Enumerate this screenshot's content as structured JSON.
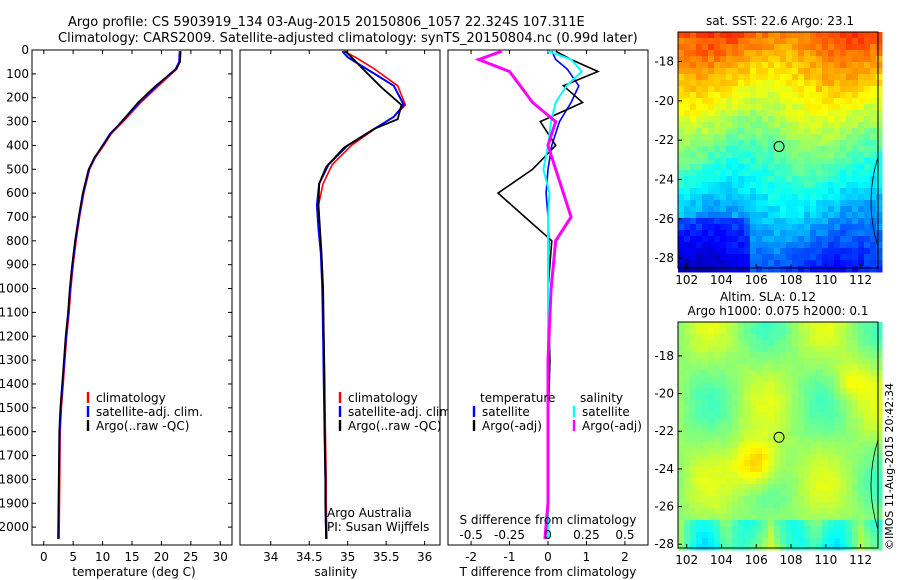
{
  "header": {
    "line1": "Argo profile: CS 5903919_134 03-Aug-2015 20150806_1057 22.324S 107.311E",
    "line2": "Climatology: CARS2009. Satellite-adjusted climatology: synTS_20150804.nc (0.99d later)"
  },
  "side_label": "©IMOS 11-Aug-2015 20:42:34",
  "colors": {
    "climatology": "#ff0000",
    "satellite": "#0000ff",
    "argo": "#000000",
    "argo_s": "#ff00ff",
    "satellite_s": "#00ffff"
  },
  "chart_data": [
    {
      "type": "line",
      "id": "temperature",
      "xlabel": "temperature (deg C)",
      "ylabel": "",
      "xlim": [
        -2,
        32
      ],
      "ylim": [
        2075,
        0
      ],
      "xticks": [
        0,
        5,
        10,
        15,
        20,
        25,
        30
      ],
      "yticks": [
        0,
        100,
        200,
        300,
        400,
        500,
        600,
        700,
        800,
        900,
        1000,
        1100,
        1200,
        1300,
        1400,
        1500,
        1600,
        1700,
        1800,
        1900,
        2000
      ],
      "legend": [
        "climatology",
        "satellite-adj. clim.",
        "Argo(..raw -QC)"
      ],
      "series": [
        {
          "name": "climatology",
          "color": "#ff0000",
          "x": [
            23.2,
            23.1,
            22.6,
            19.5,
            16.5,
            13.5,
            11.5,
            10.2,
            8.8,
            7.8,
            6.8,
            6.1,
            5.5,
            5.0,
            4.6,
            4.3,
            3.9,
            3.6,
            3.3,
            3.0,
            2.8,
            2.6
          ],
          "y": [
            5,
            50,
            80,
            150,
            220,
            300,
            350,
            400,
            450,
            500,
            600,
            700,
            800,
            900,
            1000,
            1100,
            1200,
            1300,
            1400,
            1500,
            1600,
            2050
          ]
        },
        {
          "name": "satellite-adj. clim.",
          "color": "#0000ff",
          "x": [
            23.1,
            23.0,
            22.4,
            19.2,
            16.2,
            13.3,
            11.3,
            10.0,
            8.7,
            7.7,
            6.7,
            6.0,
            5.4,
            4.9,
            4.5,
            4.2,
            3.8,
            3.5,
            3.2,
            2.9,
            2.7,
            2.5
          ],
          "y": [
            5,
            50,
            80,
            150,
            220,
            300,
            350,
            400,
            450,
            500,
            600,
            700,
            800,
            900,
            1000,
            1100,
            1200,
            1300,
            1400,
            1500,
            1600,
            2050
          ]
        },
        {
          "name": "Argo(..raw -QC)",
          "color": "#000000",
          "x": [
            23.3,
            23.2,
            22.5,
            19.0,
            16.0,
            13.2,
            11.4,
            10.1,
            8.6,
            7.6,
            6.6,
            5.9,
            5.3,
            4.8,
            4.4,
            4.1,
            3.7,
            3.4,
            3.1,
            2.8,
            2.6,
            2.4
          ],
          "y": [
            5,
            50,
            80,
            150,
            220,
            300,
            350,
            400,
            450,
            500,
            600,
            700,
            800,
            900,
            1000,
            1100,
            1200,
            1300,
            1400,
            1500,
            1600,
            2050
          ]
        }
      ]
    },
    {
      "type": "line",
      "id": "salinity",
      "xlabel": "salinity",
      "ylabel": "",
      "xlim": [
        33.6,
        36.2
      ],
      "ylim": [
        2075,
        0
      ],
      "xticks": [
        34,
        34.5,
        35,
        35.5,
        36
      ],
      "xtick_labels": [
        "34",
        "34.5",
        "35",
        "35.5",
        "36"
      ],
      "legend": [
        "climatology",
        "satellite-adj. clim.",
        "Argo(..raw -QC)"
      ],
      "annotation": [
        "Argo Australia",
        "PI: Susan Wijffels"
      ],
      "series": [
        {
          "name": "climatology",
          "color": "#ff0000",
          "x": [
            34.95,
            35.1,
            35.35,
            35.65,
            35.75,
            35.6,
            35.4,
            35.05,
            34.8,
            34.68,
            34.62,
            34.63,
            34.66,
            34.68,
            34.69,
            34.7,
            34.71,
            34.72,
            34.72,
            34.73
          ],
          "y": [
            5,
            30,
            80,
            150,
            230,
            280,
            320,
            400,
            480,
            560,
            650,
            750,
            850,
            1000,
            1200,
            1400,
            1600,
            1800,
            1900,
            2050
          ]
        },
        {
          "name": "satellite-adj. clim.",
          "color": "#0000ff",
          "x": [
            34.93,
            35.0,
            35.25,
            35.6,
            35.73,
            35.6,
            35.4,
            35.0,
            34.75,
            34.63,
            34.6,
            34.62,
            34.65,
            34.67,
            34.68,
            34.69,
            34.7,
            34.71,
            34.71,
            34.72
          ],
          "y": [
            5,
            30,
            80,
            150,
            230,
            280,
            320,
            400,
            480,
            560,
            650,
            750,
            850,
            1000,
            1200,
            1400,
            1600,
            1800,
            1900,
            2050
          ]
        },
        {
          "name": "Argo(..raw -QC)",
          "color": "#000000",
          "x": [
            34.97,
            35.05,
            35.2,
            35.45,
            35.7,
            35.65,
            35.35,
            34.95,
            34.72,
            34.63,
            34.62,
            34.64,
            34.66,
            34.68,
            34.69,
            34.7,
            34.7,
            34.71,
            34.71,
            34.72
          ],
          "y": [
            5,
            30,
            80,
            160,
            230,
            290,
            330,
            410,
            490,
            560,
            650,
            750,
            850,
            1000,
            1200,
            1400,
            1600,
            1800,
            1900,
            2050
          ]
        }
      ]
    },
    {
      "type": "line",
      "id": "difference",
      "xlabel": "T difference from climatology",
      "xlabel2": "S difference from climatology",
      "xlim": [
        -2.6,
        2.6
      ],
      "ylim": [
        2075,
        0
      ],
      "xticks": [
        -2,
        -1,
        0,
        1,
        2
      ],
      "sticks": [
        -0.5,
        -0.25,
        0,
        0.25,
        0.5
      ],
      "stick_labels": [
        "-0.5",
        "-0.25",
        "0",
        "0.25",
        "0.5"
      ],
      "legend_left_title": "temperature",
      "legend_right_title": "salinity",
      "legend": [
        "satellite",
        "Argo(-adj)",
        "satellite",
        "Argo(-adj)"
      ],
      "series": [
        {
          "name": "T satellite",
          "color": "#0000ff",
          "x": [
            0.1,
            0.2,
            0.5,
            0.8,
            0.6,
            0.3,
            0.1,
            0.0,
            -0.05,
            0.0,
            0.02,
            0.0,
            0.0,
            0.0,
            0.0,
            0.0
          ],
          "y": [
            5,
            40,
            80,
            150,
            220,
            300,
            400,
            500,
            600,
            700,
            800,
            1000,
            1300,
            1600,
            1900,
            2050
          ]
        },
        {
          "name": "T Argo(-adj)",
          "color": "#000000",
          "x": [
            0.2,
            0.6,
            1.3,
            0.4,
            0.9,
            -0.2,
            0.2,
            -0.4,
            -1.3,
            -0.6,
            0.1,
            0.0,
            0.05,
            0.0,
            0.0,
            0.0
          ],
          "y": [
            5,
            40,
            90,
            150,
            220,
            300,
            400,
            500,
            600,
            700,
            800,
            1000,
            1300,
            1600,
            1900,
            2050
          ]
        },
        {
          "name": "S satellite",
          "color": "#00ffff",
          "x": [
            0.0,
            0.15,
            0.22,
            0.12,
            0.05,
            0.02,
            0.0,
            -0.03,
            0.01,
            0.0,
            0.0,
            0.0,
            0.0,
            0.0,
            0.0,
            0.0
          ],
          "y": [
            5,
            40,
            90,
            150,
            220,
            300,
            400,
            500,
            600,
            700,
            800,
            1000,
            1300,
            1600,
            1900,
            2050
          ]
        },
        {
          "name": "S Argo(-adj)",
          "color": "#ff00ff",
          "x": [
            -0.3,
            -0.45,
            -0.25,
            -0.18,
            -0.1,
            0.05,
            0.0,
            0.05,
            0.1,
            0.15,
            0.05,
            0.02,
            0.0,
            0.0,
            0.0,
            -0.02
          ],
          "y": [
            5,
            40,
            90,
            150,
            220,
            300,
            400,
            500,
            600,
            700,
            800,
            1000,
            1300,
            1600,
            1900,
            2050
          ]
        }
      ]
    },
    {
      "type": "heatmap",
      "id": "sst",
      "title": "sat. SST: 22.6 Argo: 23.1",
      "xlim": [
        101.5,
        113
      ],
      "ylim": [
        -28.5,
        -16.5
      ],
      "xticks": [
        102,
        104,
        106,
        108,
        110,
        112
      ],
      "yticks": [
        -18,
        -20,
        -22,
        -24,
        -26,
        -28
      ],
      "marker": {
        "lon": 107.31,
        "lat": -22.32
      }
    },
    {
      "type": "heatmap",
      "id": "sla",
      "title": "Altim. SLA: 0.12",
      "subtitle": "Argo h1000: 0.075 h2000: 0.1",
      "xlim": [
        101.5,
        113
      ],
      "ylim": [
        -28.2,
        -16.2
      ],
      "xticks": [
        102,
        104,
        106,
        108,
        110,
        112
      ],
      "yticks": [
        -18,
        -20,
        -22,
        -24,
        -26,
        -28
      ],
      "marker": {
        "lon": 107.31,
        "lat": -22.32
      }
    }
  ]
}
